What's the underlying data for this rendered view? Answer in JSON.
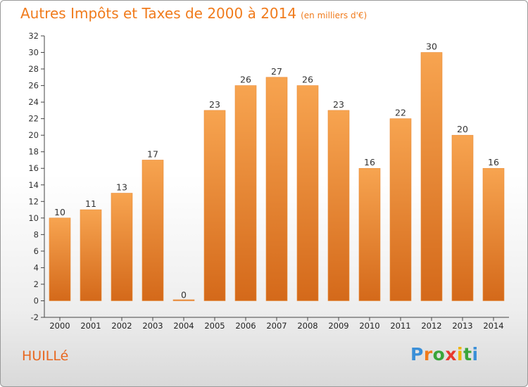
{
  "title": "Autres Impôts et Taxes de 2000 à 2014",
  "title_unit": "(en milliers d'€)",
  "place": "HUILLé",
  "logo": {
    "letters": [
      "P",
      "r",
      "o",
      "x",
      "i",
      "t",
      "i"
    ],
    "colors": [
      "#3a8fd8",
      "#f07b1c",
      "#3aa53a",
      "#e83a2e",
      "#f0b400",
      "#3aa53a",
      "#3a8fd8"
    ]
  },
  "colors": {
    "bar_light": "#f7a450",
    "bar_dark": "#d4691a",
    "title": "#f07b1c",
    "place": "#e8671f"
  },
  "chart_data": {
    "type": "bar",
    "title": "Autres Impôts et Taxes de 2000 à 2014",
    "subtitle": "(en milliers d'€)",
    "categories": [
      "2000",
      "2001",
      "2002",
      "2003",
      "2004",
      "2005",
      "2006",
      "2007",
      "2008",
      "2009",
      "2010",
      "2011",
      "2012",
      "2013",
      "2014"
    ],
    "values": [
      10,
      11,
      13,
      17,
      0,
      23,
      26,
      27,
      26,
      23,
      16,
      22,
      30,
      20,
      16
    ],
    "ylim": [
      -2,
      32
    ],
    "yticks": [
      -2,
      0,
      2,
      4,
      6,
      8,
      10,
      12,
      14,
      16,
      18,
      20,
      22,
      24,
      26,
      28,
      30,
      32
    ],
    "grid": false,
    "legend": "none"
  }
}
